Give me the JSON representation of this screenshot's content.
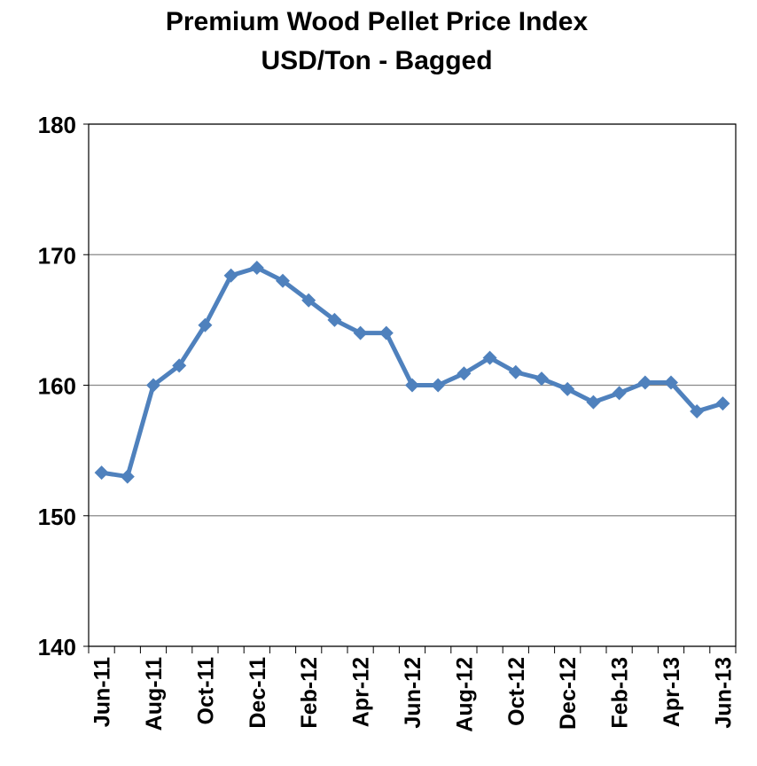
{
  "chart_data": {
    "type": "line",
    "title": "Premium Wood Pellet Price Index",
    "subtitle": "USD/Ton - Bagged",
    "categories": [
      "Jun-11",
      null,
      "Aug-11",
      null,
      "Oct-11",
      null,
      "Dec-11",
      null,
      "Feb-12",
      null,
      "Apr-12",
      null,
      "Jun-12",
      null,
      "Aug-12",
      null,
      "Oct-12",
      null,
      "Dec-12",
      null,
      "Feb-13",
      null,
      "Apr-13",
      null,
      "Jun-13"
    ],
    "series": [
      {
        "name": "Premium Wood Pellet Price Index",
        "color": "#4f81bd",
        "values": [
          153.3,
          153.0,
          160.0,
          161.5,
          164.6,
          168.4,
          169.0,
          168.0,
          166.5,
          165.0,
          164.0,
          164.0,
          160.0,
          160.0,
          160.9,
          162.1,
          161.0,
          160.5,
          159.7,
          158.7,
          159.4,
          160.2,
          160.2,
          158.0,
          158.6
        ]
      }
    ],
    "ylim": [
      140,
      180
    ],
    "yticks": [
      140,
      150,
      160,
      170,
      180
    ],
    "grid": true
  }
}
